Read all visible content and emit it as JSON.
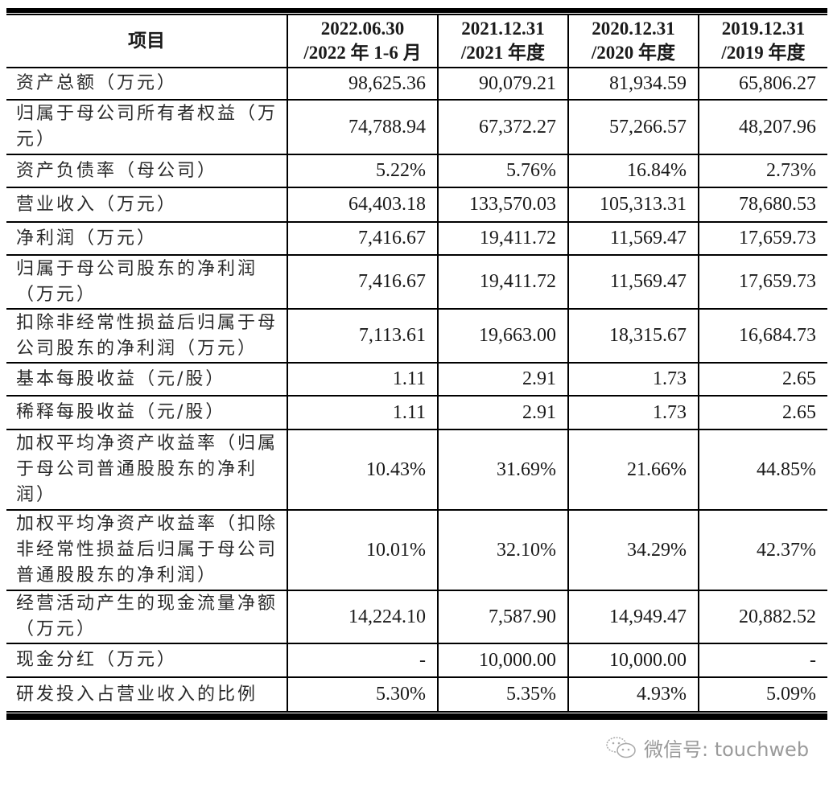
{
  "table": {
    "headers": [
      {
        "line1": "项目",
        "line2": ""
      },
      {
        "line1": "2022.06.30",
        "line2": "/2022 年 1-6 月"
      },
      {
        "line1": "2021.12.31",
        "line2": "/2021 年度"
      },
      {
        "line1": "2020.12.31",
        "line2": "/2020 年度"
      },
      {
        "line1": "2019.12.31",
        "line2": "/2019 年度"
      }
    ],
    "rows": [
      {
        "label": "资产总额（万元）",
        "values": [
          "98,625.36",
          "90,079.21",
          "81,934.59",
          "65,806.27"
        ]
      },
      {
        "label": "归属于母公司所有者权益（万元）",
        "values": [
          "74,788.94",
          "67,372.27",
          "57,266.57",
          "48,207.96"
        ]
      },
      {
        "label": "资产负债率（母公司）",
        "values": [
          "5.22%",
          "5.76%",
          "16.84%",
          "2.73%"
        ]
      },
      {
        "label": "营业收入（万元）",
        "values": [
          "64,403.18",
          "133,570.03",
          "105,313.31",
          "78,680.53"
        ]
      },
      {
        "label": "净利润（万元）",
        "values": [
          "7,416.67",
          "19,411.72",
          "11,569.47",
          "17,659.73"
        ]
      },
      {
        "label": "归属于母公司股东的净利润（万元）",
        "values": [
          "7,416.67",
          "19,411.72",
          "11,569.47",
          "17,659.73"
        ]
      },
      {
        "label": "扣除非经常性损益后归属于母公司股东的净利润（万元）",
        "values": [
          "7,113.61",
          "19,663.00",
          "18,315.67",
          "16,684.73"
        ]
      },
      {
        "label": "基本每股收益（元/股）",
        "values": [
          "1.11",
          "2.91",
          "1.73",
          "2.65"
        ]
      },
      {
        "label": "稀释每股收益（元/股）",
        "values": [
          "1.11",
          "2.91",
          "1.73",
          "2.65"
        ]
      },
      {
        "label": "加权平均净资产收益率（归属于母公司普通股股东的净利润）",
        "values": [
          "10.43%",
          "31.69%",
          "21.66%",
          "44.85%"
        ]
      },
      {
        "label": "加权平均净资产收益率（扣除非经常性损益后归属于母公司普通股股东的净利润）",
        "values": [
          "10.01%",
          "32.10%",
          "34.29%",
          "42.37%"
        ]
      },
      {
        "label": "经营活动产生的现金流量净额（万元）",
        "values": [
          "14,224.10",
          "7,587.90",
          "14,949.47",
          "20,882.52"
        ]
      },
      {
        "label": "现金分红（万元）",
        "values": [
          "-",
          "10,000.00",
          "10,000.00",
          "-"
        ]
      },
      {
        "label": "研发投入占营业收入的比例",
        "values": [
          "5.30%",
          "5.35%",
          "4.93%",
          "5.09%"
        ]
      }
    ]
  },
  "watermark": {
    "icon": "wechat-icon",
    "text": "微信号: touchweb"
  }
}
